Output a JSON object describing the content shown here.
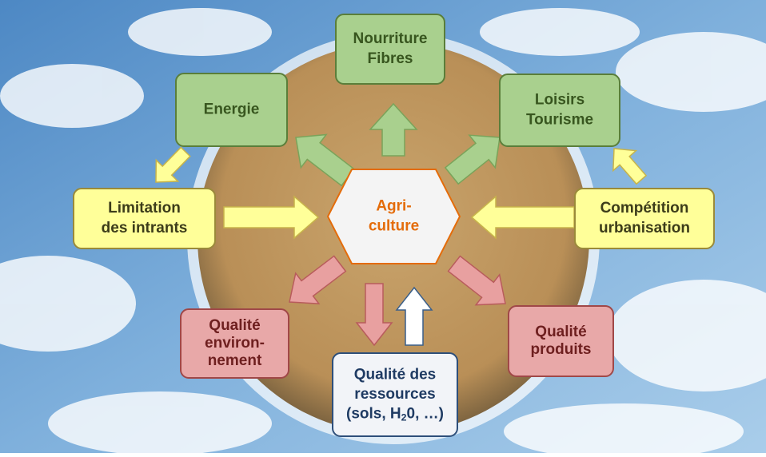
{
  "nodes": [
    {
      "id": "agriculture",
      "lines": [
        "Agri-",
        "culture"
      ]
    },
    {
      "id": "nourriture",
      "lines": [
        "Nourriture",
        "Fibres"
      ]
    },
    {
      "id": "energie",
      "lines": [
        "Energie"
      ]
    },
    {
      "id": "loisirs",
      "lines": [
        "Loisirs",
        "Tourisme"
      ]
    },
    {
      "id": "limitation",
      "lines": [
        "Limitation",
        "des intrants"
      ]
    },
    {
      "id": "competition",
      "lines": [
        "Compétition",
        "urbanisation"
      ]
    },
    {
      "id": "ressources",
      "lines": [
        "Qualité des",
        "ressources"
      ],
      "formula": [
        "(sols, H",
        "2",
        "0, …)"
      ]
    },
    {
      "id": "environnement",
      "lines": [
        "Qualité",
        "environ-",
        "nement"
      ]
    },
    {
      "id": "produits",
      "lines": [
        "Qualité",
        "produits"
      ]
    }
  ]
}
